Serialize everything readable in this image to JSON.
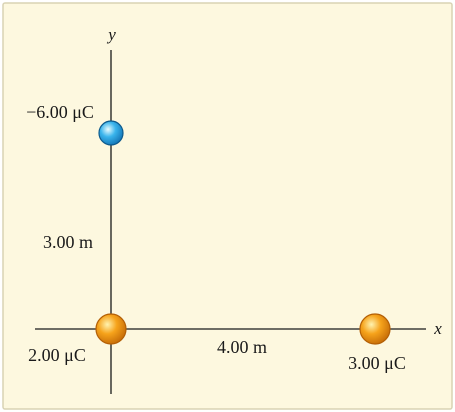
{
  "colors": {
    "background": "#fdf8df",
    "border": "#d9d3b4",
    "axis": "#1a1a1a",
    "positive_charge": "#f6a31b",
    "negative_charge": "#39b4ec",
    "text": "#1a1a1a"
  },
  "axes": {
    "x_label": "x",
    "y_label": "y"
  },
  "charges": [
    {
      "id": "q-negative",
      "value_label": "−6.00 μC",
      "sign": "negative",
      "x_m": 0,
      "y_m": 3
    },
    {
      "id": "q-origin",
      "value_label": "2.00 μC",
      "sign": "positive",
      "x_m": 0,
      "y_m": 0
    },
    {
      "id": "q-right",
      "value_label": "3.00 μC",
      "sign": "positive",
      "x_m": 4,
      "y_m": 0
    }
  ],
  "distances": {
    "vertical_label": "3.00 m",
    "horizontal_label": "4.00 m"
  }
}
